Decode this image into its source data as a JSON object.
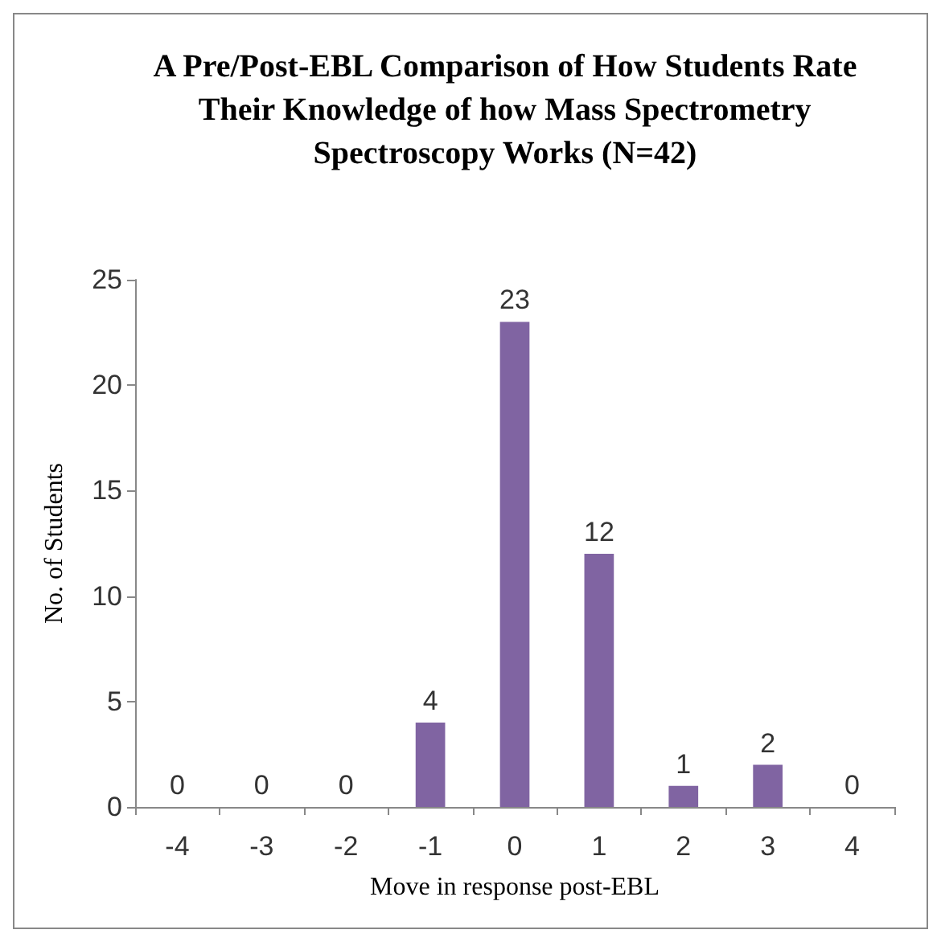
{
  "chart_data": {
    "type": "bar",
    "title": "A Pre/Post-EBL Comparison of How Students Rate Their Knowledge of how Mass Spectrometry Spectroscopy Works (N=42)",
    "xlabel": "Move in response post-EBL",
    "ylabel": "No. of Students",
    "categories": [
      "-4",
      "-3",
      "-2",
      "-1",
      "0",
      "1",
      "2",
      "3",
      "4"
    ],
    "values": [
      0,
      0,
      0,
      4,
      23,
      12,
      1,
      2,
      0
    ],
    "color": "#8064a2",
    "ylim": [
      0,
      25
    ],
    "yticks": [
      0,
      5,
      10,
      15,
      20,
      25
    ],
    "grid": false,
    "data_labels": true
  }
}
